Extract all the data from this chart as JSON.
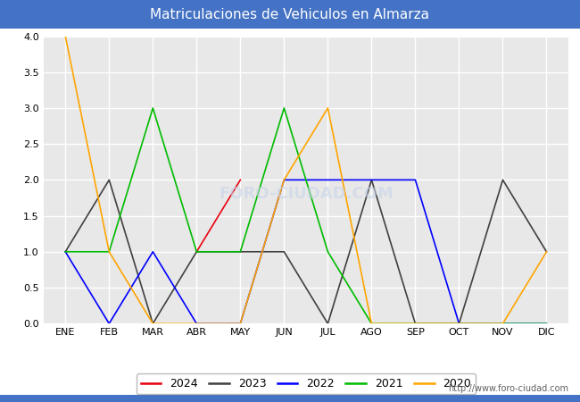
{
  "title": "Matriculaciones de Vehiculos en Almarza",
  "months": [
    "ENE",
    "FEB",
    "MAR",
    "ABR",
    "MAY",
    "JUN",
    "JUL",
    "AGO",
    "SEP",
    "OCT",
    "NOV",
    "DIC"
  ],
  "series": {
    "2024": {
      "color": "#e8000d",
      "data": [
        null,
        null,
        null,
        1,
        2,
        null,
        null,
        null,
        null,
        null,
        null,
        null
      ]
    },
    "2023": {
      "color": "#404040",
      "data": [
        1,
        2,
        0,
        1,
        1,
        1,
        0,
        2,
        0,
        0,
        2,
        1
      ]
    },
    "2022": {
      "color": "#0000ff",
      "data": [
        1,
        0,
        1,
        0,
        0,
        2,
        2,
        2,
        2,
        0,
        0,
        0
      ]
    },
    "2021": {
      "color": "#00bb00",
      "data": [
        1,
        1,
        3,
        1,
        1,
        3,
        1,
        0,
        0,
        0,
        0,
        0
      ]
    },
    "2020": {
      "color": "#ffa500",
      "data": [
        4,
        1,
        0,
        0,
        0,
        2,
        3,
        0,
        0,
        0,
        0,
        1
      ]
    }
  },
  "years_order": [
    "2024",
    "2023",
    "2022",
    "2021",
    "2020"
  ],
  "ylim": [
    0,
    4.0
  ],
  "yticks": [
    0.0,
    0.5,
    1.0,
    1.5,
    2.0,
    2.5,
    3.0,
    3.5,
    4.0
  ],
  "title_bg_color": "#4472c4",
  "title_text_color": "#ffffff",
  "plot_bg_color": "#e8e8e8",
  "grid_color": "#ffffff",
  "url_text": "http://www.foro-ciudad.com",
  "watermark_text": "FORO-CIUDAD.COM",
  "watermark_color": "#c8d4e8",
  "bottom_border_color": "#4472c4",
  "title_fontsize": 11,
  "tick_fontsize": 8,
  "legend_fontsize": 9,
  "line_width": 1.2
}
